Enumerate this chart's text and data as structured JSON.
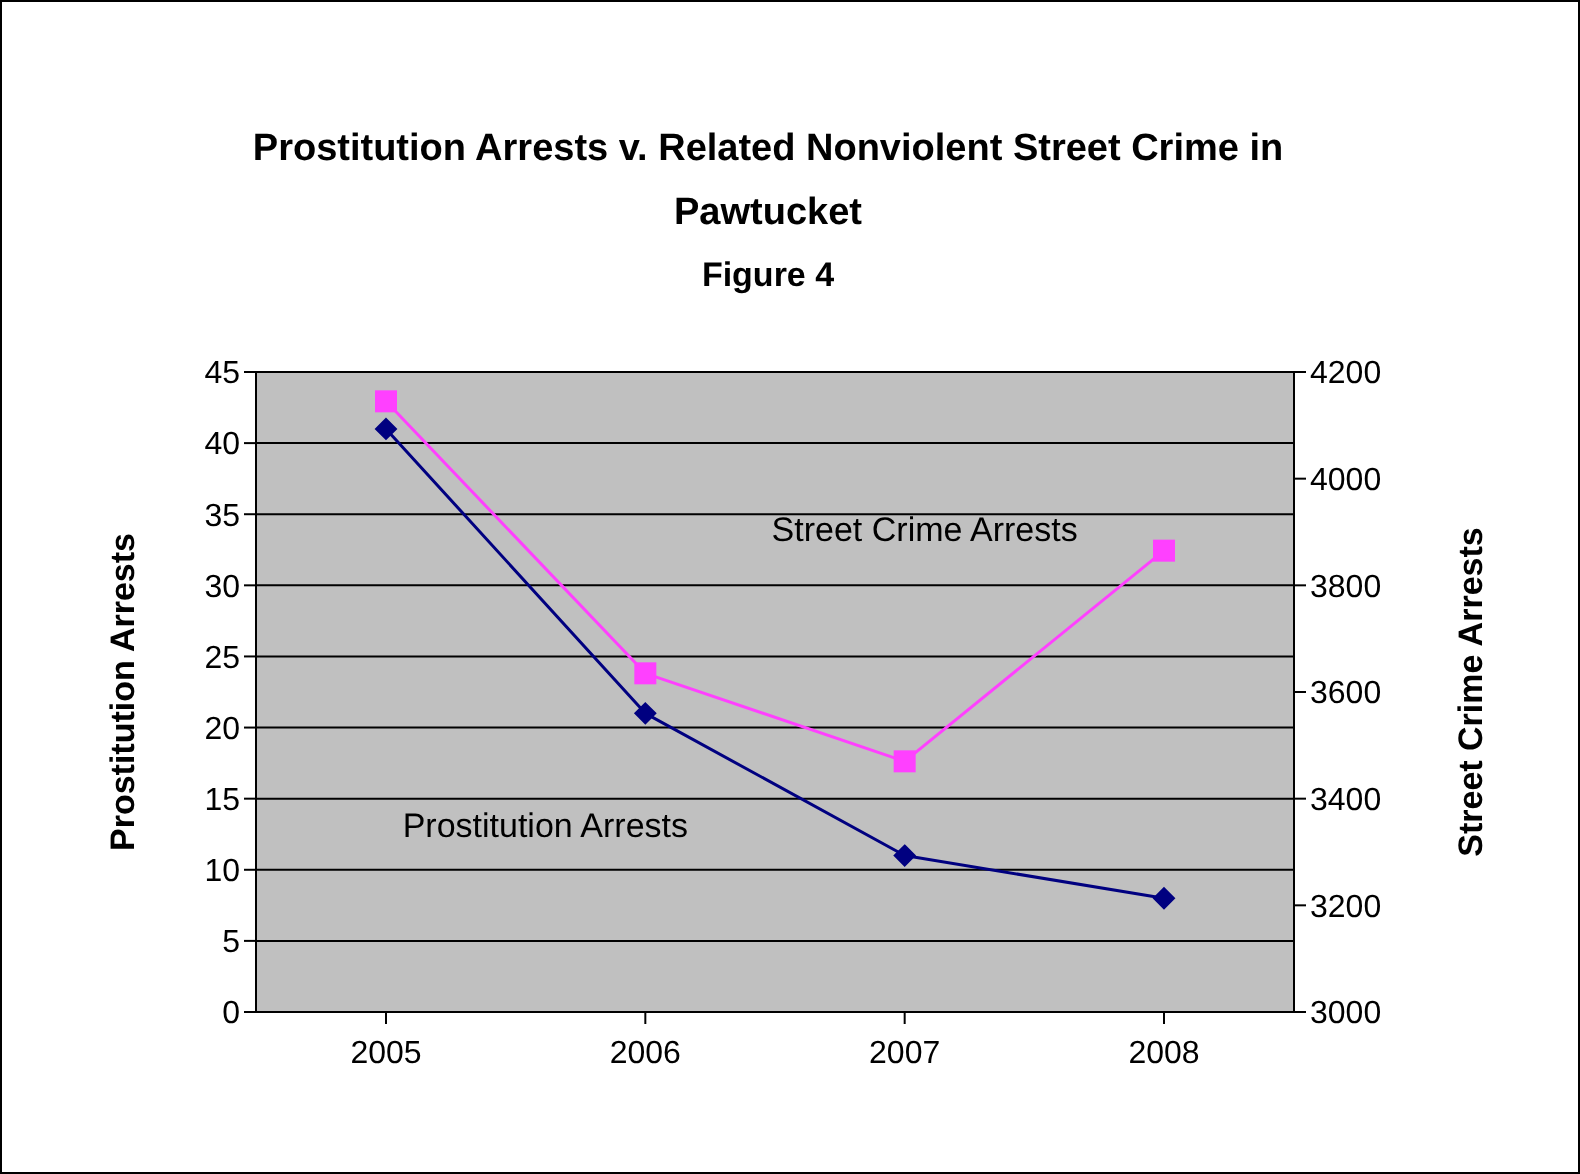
{
  "chart_data": {
    "type": "line",
    "title": "Prostitution Arrests v. Related Nonviolent Street Crime in Pawtucket",
    "subtitle": "Figure 4",
    "ylabel": "Prostitution Arrests",
    "y2label": "Street Crime Arrests",
    "categories": [
      "2005",
      "2006",
      "2007",
      "2008"
    ],
    "series": [
      {
        "name": "Prostitution Arrests",
        "color": "#000080",
        "values": [
          41,
          21,
          11,
          8
        ],
        "marker": "diamond"
      },
      {
        "name": "Street Crime Arrests",
        "color": "#ff40ff",
        "values": [
          4145,
          3635,
          3470,
          3865
        ],
        "axis": "y2",
        "marker": "square"
      }
    ],
    "ylim": [
      0,
      45
    ],
    "yticks": [
      0,
      5,
      10,
      15,
      20,
      25,
      30,
      35,
      40,
      45
    ],
    "y2lim": [
      3000,
      4200
    ],
    "y2ticks": [
      3000,
      3200,
      3400,
      3600,
      3800,
      4000,
      4200
    ],
    "grid": "y",
    "legend": false
  }
}
